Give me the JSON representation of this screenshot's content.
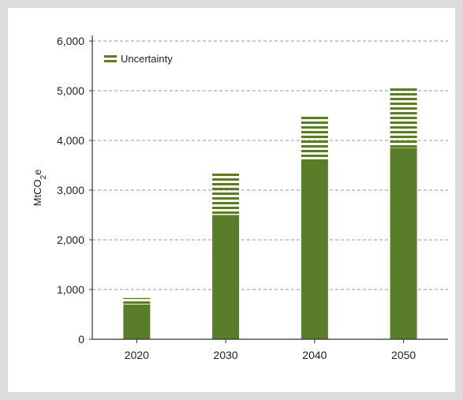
{
  "chart_data": {
    "type": "bar",
    "categories": [
      "2020",
      "2030",
      "2040",
      "2050"
    ],
    "series": [
      {
        "values": [
          700,
          2500,
          3620,
          3850
        ]
      },
      {
        "name": "Uncertainty",
        "values": [
          130,
          850,
          880,
          1220
        ]
      }
    ],
    "stacked": true,
    "ylabel": "MtCO2e",
    "ylim": [
      0,
      6000
    ],
    "yticks": [
      0,
      1000,
      2000,
      3000,
      4000,
      5000,
      6000
    ],
    "ytick_labels": [
      "0",
      "1,000",
      "2,000",
      "3,000",
      "4,000",
      "5,000",
      "6,000"
    ],
    "grid": true,
    "legend_position": "top-left",
    "colors": {
      "bar": "#5a7d2a",
      "uncertainty": "#5a7d2a",
      "grid": "#999999"
    }
  }
}
